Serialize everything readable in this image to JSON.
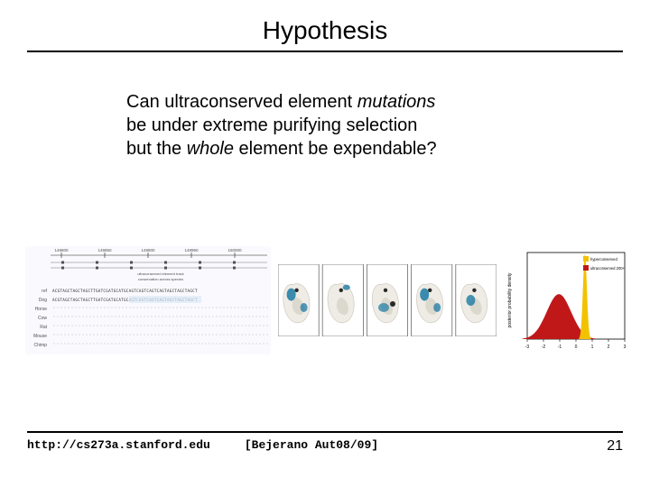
{
  "title": "Hypothesis",
  "body": {
    "line1_a": "Can ultraconserved element ",
    "line1_b": "mutations",
    "line2": "be under extreme purifying selection",
    "line3_a": "but the ",
    "line3_b": "whole",
    "line3_c": " element be expendable?"
  },
  "footer": {
    "url": "http://cs273a.stanford.edu",
    "citation": "[Bejerano Aut08/09]",
    "page_number": "21"
  },
  "fig_genome": {
    "bg": "#fafafe",
    "tick_color": "#202020",
    "label_color": "#505050",
    "seq_color": "#2a2a2a",
    "dot_color": "#707070",
    "highlight_color": "#2b6fb5",
    "highlight_bg": "#dbeaf8",
    "x_labels": [
      "149800",
      "149850",
      "149900",
      "149950",
      "150000"
    ],
    "row_labels": [
      "ref",
      "Dog",
      "Horse",
      "Cow",
      "Rat",
      "Mouse",
      "Chimp"
    ]
  },
  "fig_embryos": {
    "count": 5,
    "border": "#6a6a6a",
    "body": "#efece6",
    "shadow": "#c8c3b6",
    "stain": "#1b7aa3",
    "dark": "#2a2a2a"
  },
  "fig_density": {
    "axis_color": "#000000",
    "tick_labels_x": [
      "-3",
      "-2",
      "-1",
      "0",
      "1",
      "2",
      "3"
    ],
    "ylabel": "posterior probability density",
    "legend": [
      {
        "label": "hyperconserved",
        "color": "#f2c200"
      },
      {
        "label": "ultraconserved 200+",
        "color": "#c01818"
      }
    ],
    "red_fill": "#c01818",
    "yellow_fill": "#f2c200"
  }
}
